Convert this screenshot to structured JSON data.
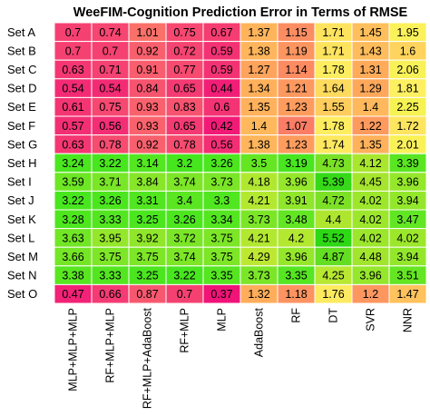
{
  "chart_data": {
    "type": "heatmap",
    "title": "WeeFIM-Cognition Prediction Error in Terms of RMSE",
    "columns": [
      "MLP+MLP+MLP",
      "RF+MLP+MLP",
      "RF+MLP+AdaBoost",
      "RF+MLP",
      "MLP",
      "AdaBoost",
      "RF",
      "DT",
      "SVR",
      "NNR"
    ],
    "rows": [
      "Set A",
      "Set B",
      "Set C",
      "Set D",
      "Set E",
      "Set F",
      "Set G",
      "Set H",
      "Set I",
      "Set J",
      "Set K",
      "Set L",
      "Set M",
      "Set N",
      "Set O"
    ],
    "values": [
      [
        "0.7",
        "0.74",
        "1.01",
        "0.75",
        "0.67",
        "1.37",
        "1.15",
        "1.71",
        "1.45",
        "1.95"
      ],
      [
        "0.7",
        "0.7",
        "0.92",
        "0.72",
        "0.59",
        "1.38",
        "1.19",
        "1.71",
        "1.43",
        "1.6"
      ],
      [
        "0.63",
        "0.71",
        "0.91",
        "0.77",
        "0.59",
        "1.27",
        "1.14",
        "1.78",
        "1.31",
        "2.06"
      ],
      [
        "0.54",
        "0.54",
        "0.84",
        "0.65",
        "0.44",
        "1.34",
        "1.21",
        "1.64",
        "1.29",
        "1.81"
      ],
      [
        "0.61",
        "0.75",
        "0.93",
        "0.83",
        "0.6",
        "1.35",
        "1.23",
        "1.55",
        "1.4",
        "2.25"
      ],
      [
        "0.57",
        "0.56",
        "0.93",
        "0.65",
        "0.42",
        "1.4",
        "1.07",
        "1.78",
        "1.22",
        "1.72"
      ],
      [
        "0.63",
        "0.78",
        "0.92",
        "0.78",
        "0.56",
        "1.38",
        "1.23",
        "1.74",
        "1.35",
        "2.01"
      ],
      [
        "3.24",
        "3.22",
        "3.14",
        "3.2",
        "3.26",
        "3.5",
        "3.19",
        "4.73",
        "4.12",
        "3.39"
      ],
      [
        "3.59",
        "3.71",
        "3.84",
        "3.74",
        "3.73",
        "4.18",
        "3.96",
        "5.39",
        "4.45",
        "3.96"
      ],
      [
        "3.22",
        "3.26",
        "3.31",
        "3.4",
        "3.3",
        "4.21",
        "3.91",
        "4.72",
        "4.02",
        "3.94"
      ],
      [
        "3.28",
        "3.33",
        "3.25",
        "3.26",
        "3.34",
        "3.73",
        "3.48",
        "4.4",
        "4.02",
        "3.47"
      ],
      [
        "3.63",
        "3.95",
        "3.92",
        "3.72",
        "3.75",
        "4.21",
        "4.2",
        "5.52",
        "4.02",
        "4.02"
      ],
      [
        "3.66",
        "3.75",
        "3.75",
        "3.74",
        "3.75",
        "4.29",
        "3.96",
        "4.87",
        "4.48",
        "3.94"
      ],
      [
        "3.38",
        "3.33",
        "3.25",
        "3.22",
        "3.35",
        "3.73",
        "3.35",
        "4.25",
        "3.96",
        "3.51"
      ],
      [
        "0.47",
        "0.66",
        "0.87",
        "0.7",
        "0.37",
        "1.32",
        "1.18",
        "1.76",
        "1.2",
        "1.47"
      ]
    ]
  }
}
